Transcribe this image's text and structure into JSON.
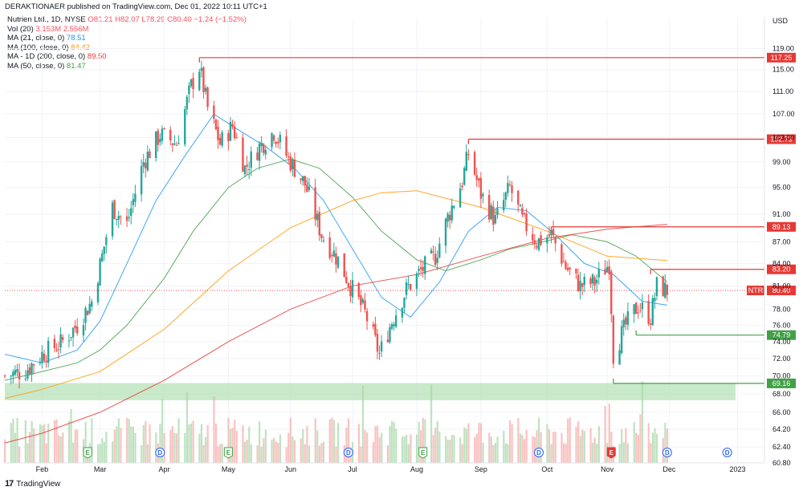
{
  "header": {
    "publisher": "DERAKTIONAER published on TradingView.com, Dec 01, 2022 10:11 UTC+1"
  },
  "legend": {
    "symbol_line": {
      "label": "Nutrien Ltd., 1D, NYSE",
      "ohlc": "O81.21 H82.07 L78.29 C80.40 −1.24 (−1.52%)"
    },
    "indicators": [
      {
        "label": "Vol (20)",
        "value": "3.153M 2.556M",
        "color": "#f7525f"
      },
      {
        "label": "MA (21, close, 0)",
        "value": "78.51",
        "color": "#2196f3"
      },
      {
        "label": "MA (100, close, 0)",
        "value": "84.42",
        "color": "#ff9800"
      },
      {
        "label": "MA - 1D (200, close, 0)",
        "value": "89.50",
        "color": "#e53935"
      },
      {
        "label": "MA (50, close, 0)",
        "value": "81.47",
        "color": "#43a047"
      }
    ]
  },
  "currency": "USD",
  "footer": {
    "brand": "TradingView"
  },
  "chart_data": {
    "type": "candlestick",
    "ticker_label": "NTR",
    "y_scale": "log",
    "ylim": [
      60.8,
      123.8
    ],
    "x_range": [
      "2022-01-14",
      "2023-01-16"
    ],
    "y_ticks": [
      60.8,
      62.4,
      64.2,
      66.0,
      68.0,
      70.0,
      72.0,
      74.0,
      76.0,
      78.0,
      81.0,
      84.0,
      87.0,
      91.0,
      95.0,
      99.0,
      103.0,
      107.0,
      111.0,
      115.0,
      119.0
    ],
    "x_ticks": [
      {
        "label": "Feb",
        "date": "2022-02-01"
      },
      {
        "label": "Mar",
        "date": "2022-03-01"
      },
      {
        "label": "Apr",
        "date": "2022-04-01"
      },
      {
        "label": "May",
        "date": "2022-05-02"
      },
      {
        "label": "Jun",
        "date": "2022-06-01"
      },
      {
        "label": "Jul",
        "date": "2022-07-01"
      },
      {
        "label": "Aug",
        "date": "2022-08-01"
      },
      {
        "label": "Sep",
        "date": "2022-09-01"
      },
      {
        "label": "Oct",
        "date": "2022-10-03"
      },
      {
        "label": "Nov",
        "date": "2022-11-01"
      },
      {
        "label": "Dec",
        "date": "2022-12-01"
      },
      {
        "label": "2023",
        "date": "2023-01-03"
      }
    ],
    "closes": [
      {
        "date": "2022-01-14",
        "close": 70.0
      },
      {
        "date": "2022-01-24",
        "close": 70.6
      },
      {
        "date": "2022-02-01",
        "close": 72.5
      },
      {
        "date": "2022-02-10",
        "close": 73.8
      },
      {
        "date": "2022-02-18",
        "close": 76.0
      },
      {
        "date": "2022-02-25",
        "close": 79.0
      },
      {
        "date": "2022-03-02",
        "close": 85.0
      },
      {
        "date": "2022-03-07",
        "close": 92.0
      },
      {
        "date": "2022-03-14",
        "close": 89.5
      },
      {
        "date": "2022-03-22",
        "close": 99.0
      },
      {
        "date": "2022-03-30",
        "close": 103.5
      },
      {
        "date": "2022-04-07",
        "close": 102.0
      },
      {
        "date": "2022-04-14",
        "close": 112.0
      },
      {
        "date": "2022-04-18",
        "close": 115.5
      },
      {
        "date": "2022-04-22",
        "close": 108.0
      },
      {
        "date": "2022-04-28",
        "close": 102.0
      },
      {
        "date": "2022-05-04",
        "close": 105.0
      },
      {
        "date": "2022-05-10",
        "close": 98.0
      },
      {
        "date": "2022-05-17",
        "close": 101.5
      },
      {
        "date": "2022-05-24",
        "close": 104.0
      },
      {
        "date": "2022-05-31",
        "close": 99.5
      },
      {
        "date": "2022-06-08",
        "close": 95.5
      },
      {
        "date": "2022-06-16",
        "close": 88.0
      },
      {
        "date": "2022-06-24",
        "close": 84.5
      },
      {
        "date": "2022-06-30",
        "close": 81.0
      },
      {
        "date": "2022-07-07",
        "close": 77.5
      },
      {
        "date": "2022-07-14",
        "close": 72.5
      },
      {
        "date": "2022-07-20",
        "close": 76.5
      },
      {
        "date": "2022-07-27",
        "close": 80.5
      },
      {
        "date": "2022-08-03",
        "close": 83.0
      },
      {
        "date": "2022-08-10",
        "close": 85.0
      },
      {
        "date": "2022-08-16",
        "close": 90.5
      },
      {
        "date": "2022-08-23",
        "close": 96.0
      },
      {
        "date": "2022-08-26",
        "close": 100.5
      },
      {
        "date": "2022-09-01",
        "close": 94.0
      },
      {
        "date": "2022-09-08",
        "close": 90.0
      },
      {
        "date": "2022-09-15",
        "close": 95.0
      },
      {
        "date": "2022-09-21",
        "close": 90.0
      },
      {
        "date": "2022-09-28",
        "close": 87.0
      },
      {
        "date": "2022-10-05",
        "close": 88.0
      },
      {
        "date": "2022-10-12",
        "close": 83.5
      },
      {
        "date": "2022-10-19",
        "close": 81.0
      },
      {
        "date": "2022-10-26",
        "close": 81.5
      },
      {
        "date": "2022-11-02",
        "close": 84.0
      },
      {
        "date": "2022-11-04",
        "close": 72.5
      },
      {
        "date": "2022-11-10",
        "close": 76.0
      },
      {
        "date": "2022-11-16",
        "close": 78.5
      },
      {
        "date": "2022-11-22",
        "close": 77.0
      },
      {
        "date": "2022-11-25",
        "close": 81.0
      },
      {
        "date": "2022-11-30",
        "close": 80.4
      }
    ],
    "ma_series": [
      {
        "name": "MA (21, close, 0)",
        "color": "#2196f3",
        "points": [
          [
            "2022-01-14",
            72.5
          ],
          [
            "2022-02-01",
            71.5
          ],
          [
            "2022-02-18",
            73.0
          ],
          [
            "2022-03-01",
            76.5
          ],
          [
            "2022-03-14",
            84.0
          ],
          [
            "2022-03-28",
            93.0
          ],
          [
            "2022-04-11",
            100.0
          ],
          [
            "2022-04-25",
            107.0
          ],
          [
            "2022-05-06",
            104.5
          ],
          [
            "2022-05-20",
            101.5
          ],
          [
            "2022-06-03",
            98.0
          ],
          [
            "2022-06-17",
            93.0
          ],
          [
            "2022-07-01",
            86.0
          ],
          [
            "2022-07-15",
            79.5
          ],
          [
            "2022-07-29",
            77.0
          ],
          [
            "2022-08-12",
            81.5
          ],
          [
            "2022-08-26",
            88.5
          ],
          [
            "2022-09-09",
            92.0
          ],
          [
            "2022-09-23",
            91.5
          ],
          [
            "2022-10-07",
            88.0
          ],
          [
            "2022-10-21",
            84.0
          ],
          [
            "2022-11-04",
            82.5
          ],
          [
            "2022-11-18",
            79.0
          ],
          [
            "2022-11-30",
            78.5
          ]
        ]
      },
      {
        "name": "MA (50, close, 0)",
        "color": "#43a047",
        "points": [
          [
            "2022-01-14",
            69.5
          ],
          [
            "2022-02-01",
            70.5
          ],
          [
            "2022-02-18",
            71.5
          ],
          [
            "2022-03-01",
            73.0
          ],
          [
            "2022-03-14",
            76.0
          ],
          [
            "2022-04-01",
            82.0
          ],
          [
            "2022-04-15",
            88.5
          ],
          [
            "2022-05-02",
            95.0
          ],
          [
            "2022-05-16",
            98.0
          ],
          [
            "2022-06-01",
            99.5
          ],
          [
            "2022-06-15",
            98.0
          ],
          [
            "2022-07-01",
            93.5
          ],
          [
            "2022-07-15",
            88.5
          ],
          [
            "2022-08-01",
            84.5
          ],
          [
            "2022-08-15",
            83.0
          ],
          [
            "2022-09-01",
            84.5
          ],
          [
            "2022-09-15",
            86.0
          ],
          [
            "2022-10-01",
            87.0
          ],
          [
            "2022-10-15",
            88.0
          ],
          [
            "2022-11-01",
            87.0
          ],
          [
            "2022-11-15",
            85.0
          ],
          [
            "2022-11-30",
            81.5
          ]
        ]
      },
      {
        "name": "MA (100, close, 0)",
        "color": "#ff9800",
        "points": [
          [
            "2022-01-14",
            67.5
          ],
          [
            "2022-02-01",
            68.5
          ],
          [
            "2022-03-01",
            70.5
          ],
          [
            "2022-04-01",
            75.5
          ],
          [
            "2022-05-02",
            83.0
          ],
          [
            "2022-06-01",
            89.0
          ],
          [
            "2022-07-01",
            93.0
          ],
          [
            "2022-07-15",
            94.2
          ],
          [
            "2022-08-01",
            94.5
          ],
          [
            "2022-09-01",
            92.0
          ],
          [
            "2022-10-03",
            88.5
          ],
          [
            "2022-11-01",
            85.0
          ],
          [
            "2022-11-30",
            84.4
          ]
        ]
      },
      {
        "name": "MA - 1D (200, close, 0)",
        "color": "#e53935",
        "points": [
          [
            "2022-01-14",
            62.8
          ],
          [
            "2022-02-01",
            63.8
          ],
          [
            "2022-03-01",
            66.0
          ],
          [
            "2022-04-01",
            69.5
          ],
          [
            "2022-05-02",
            74.0
          ],
          [
            "2022-06-01",
            78.0
          ],
          [
            "2022-07-01",
            81.0
          ],
          [
            "2022-08-01",
            82.5
          ],
          [
            "2022-09-01",
            85.0
          ],
          [
            "2022-10-03",
            87.5
          ],
          [
            "2022-11-01",
            88.8
          ],
          [
            "2022-11-30",
            89.5
          ]
        ]
      }
    ],
    "levels": [
      {
        "value": "117.25",
        "color": "#e53935",
        "from": "2022-04-18"
      },
      {
        "value": "102.73",
        "color": "#e53935",
        "from": "2022-08-26"
      },
      {
        "value": "89.13",
        "color": "#e53935",
        "from": "2022-10-05"
      },
      {
        "value": "83.20",
        "color": "#e53935",
        "from": "2022-11-22"
      },
      {
        "value": "80.40",
        "color": "#e53935",
        "from": "2022-01-14",
        "ticker": "NTR",
        "dashed": true
      },
      {
        "value": "74.79",
        "color": "#43a047",
        "from": "2022-11-15"
      },
      {
        "value": "69.16",
        "color": "#43a047",
        "from": "2022-11-04"
      }
    ],
    "zone": {
      "from": 67.3,
      "to": 69.2,
      "color": "#b7e1b9",
      "end": "2023-01-02"
    },
    "events": [
      {
        "date": "2022-02-23",
        "label": "E",
        "kind": "earnings"
      },
      {
        "date": "2022-03-30",
        "label": "D",
        "kind": "dividend"
      },
      {
        "date": "2022-05-02",
        "label": "E",
        "kind": "earnings"
      },
      {
        "date": "2022-06-29",
        "label": "D",
        "kind": "dividend"
      },
      {
        "date": "2022-08-04",
        "label": "E",
        "kind": "earnings"
      },
      {
        "date": "2022-09-29",
        "label": "D",
        "kind": "dividend"
      },
      {
        "date": "2022-11-03",
        "label": "E",
        "kind": "earnings-active"
      },
      {
        "date": "2022-11-30",
        "label": "D",
        "kind": "dividend"
      },
      {
        "date": "2022-12-29",
        "label": "D",
        "kind": "dividend"
      }
    ],
    "volume_avg_note": "Vol (20)"
  }
}
